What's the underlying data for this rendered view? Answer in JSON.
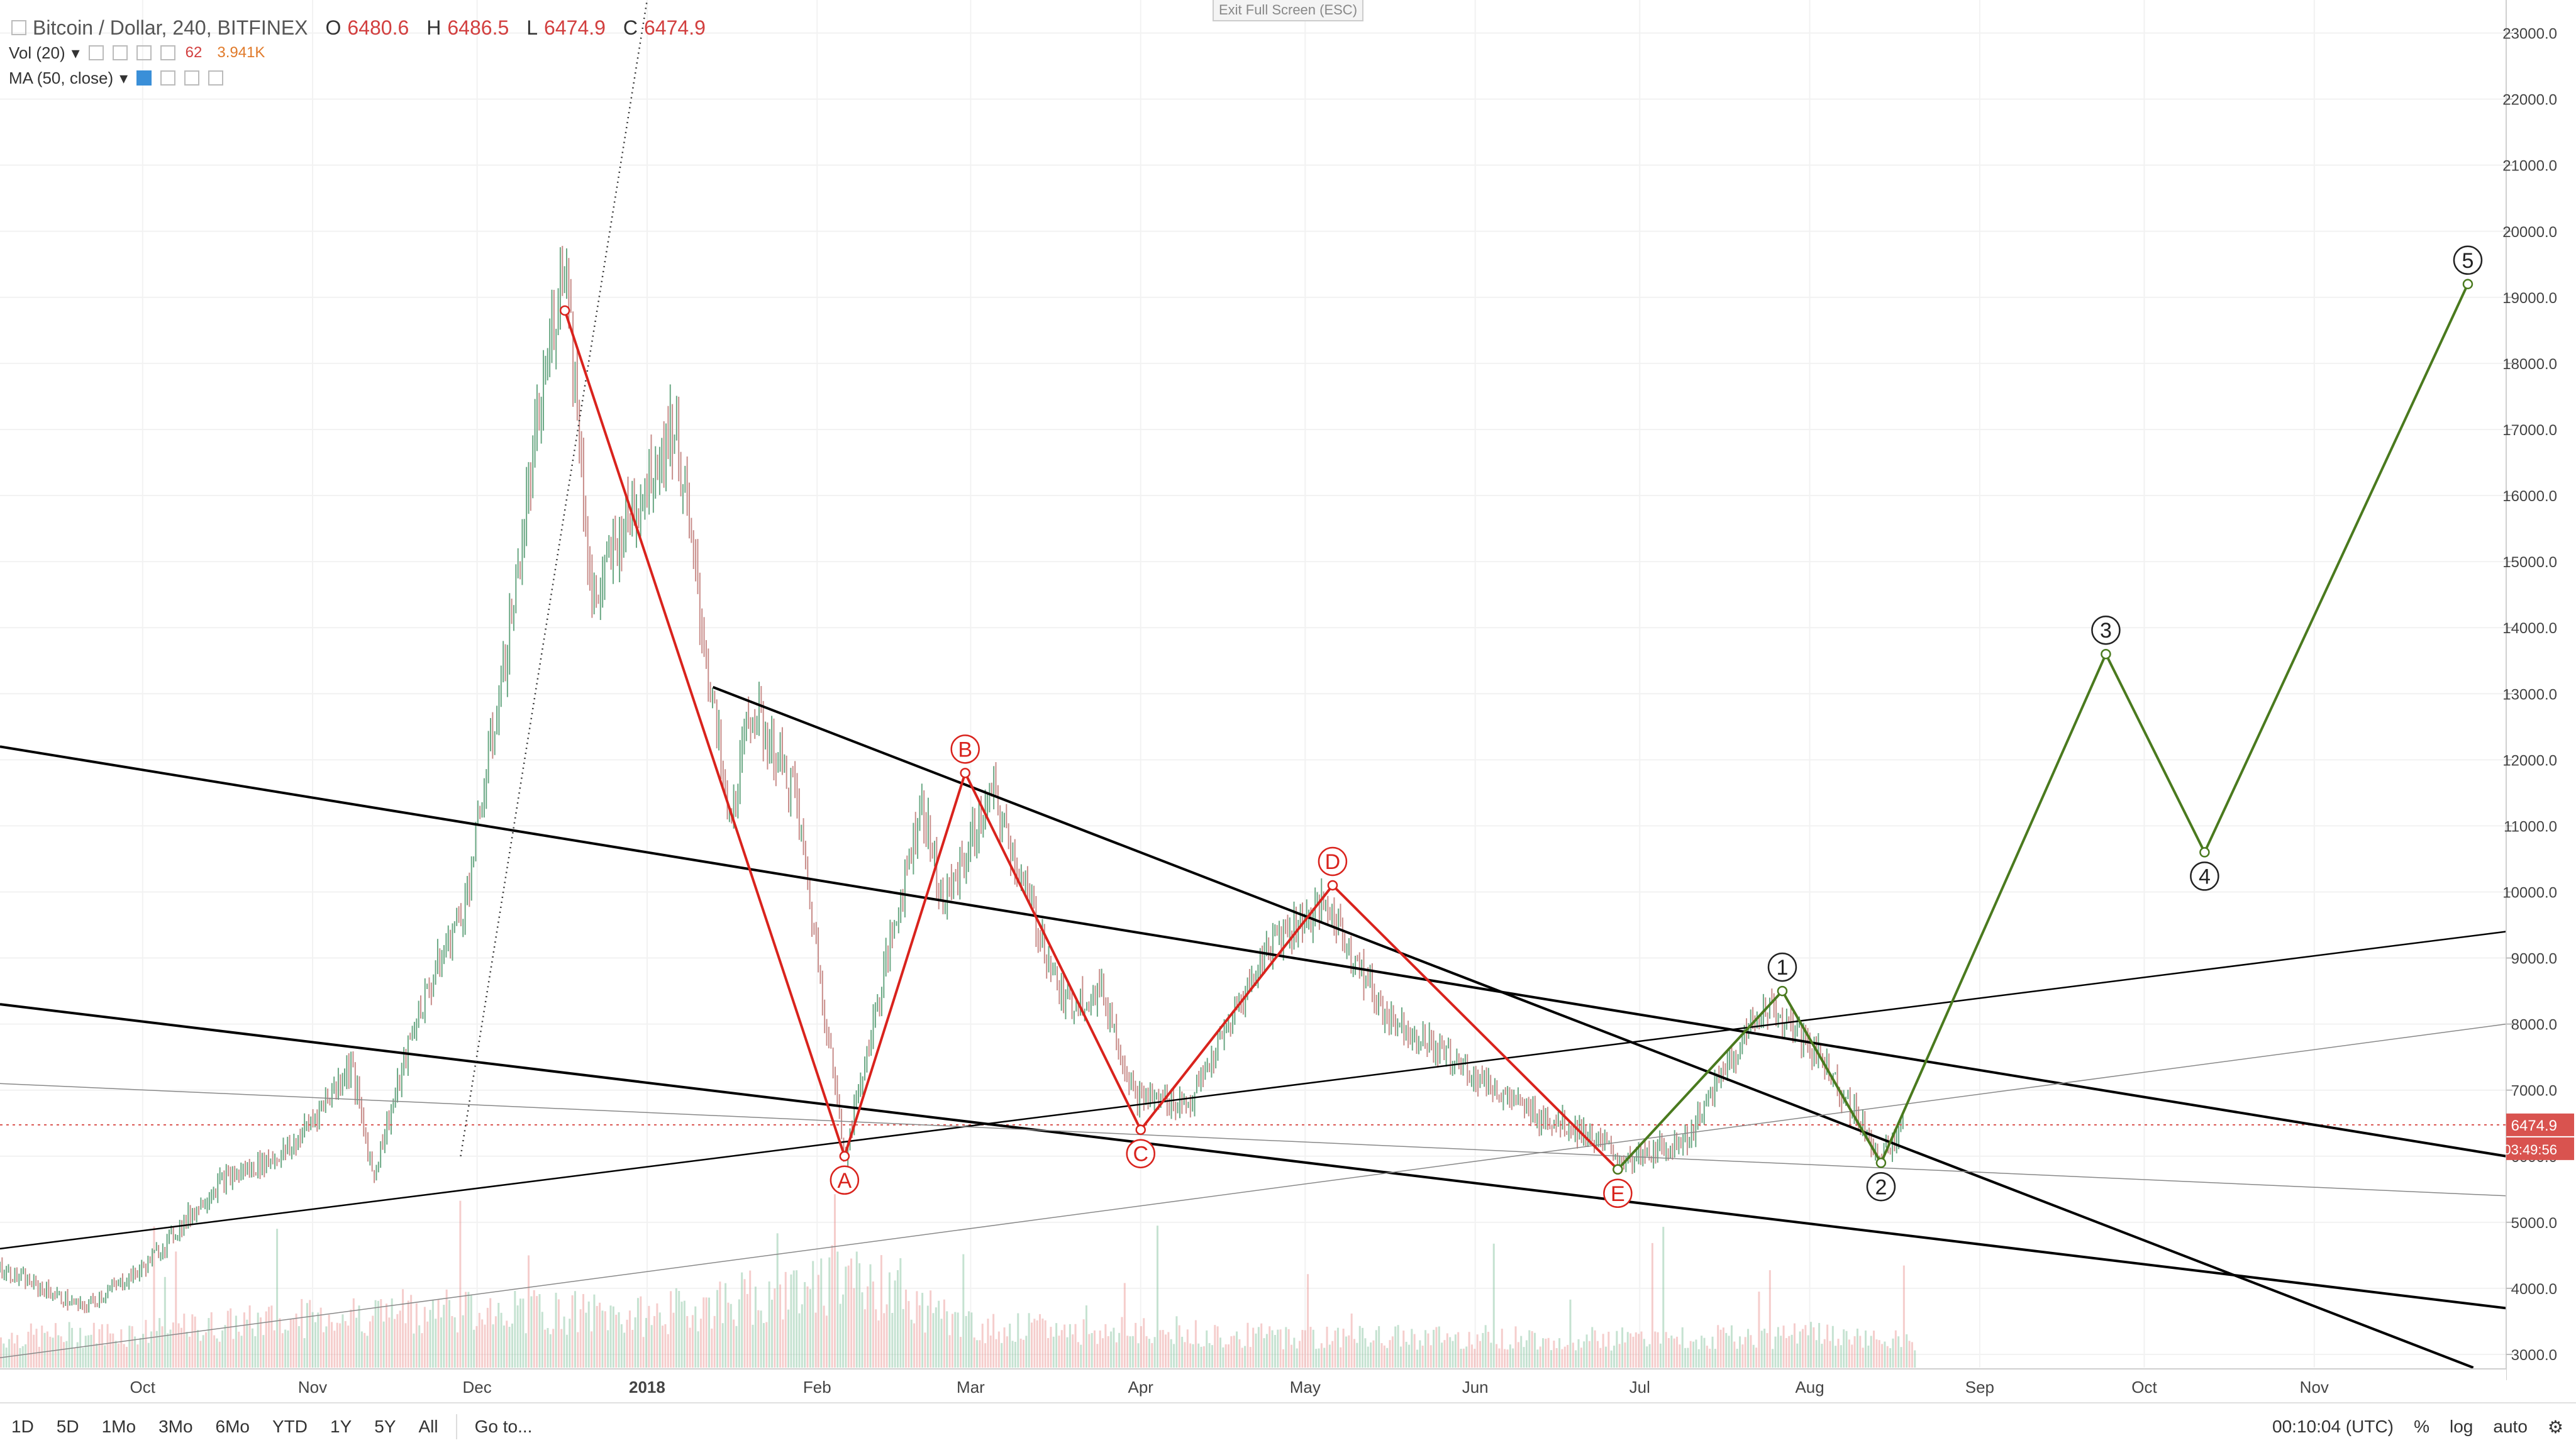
{
  "header": {
    "symbol": "Bitcoin / Dollar, 240, BITFINEX",
    "ohlc": [
      {
        "key": "O",
        "value": "6480.6"
      },
      {
        "key": "H",
        "value": "6486.5"
      },
      {
        "key": "L",
        "value": "6474.9"
      },
      {
        "key": "C",
        "value": "6474.9"
      }
    ],
    "vol_label": "Vol (20)",
    "vol_value_1": "62",
    "vol_value_2": "3.941K",
    "ma_label": "MA (50, close)",
    "exit_fullscreen": "Exit Full Screen (ESC)"
  },
  "price_axis": {
    "ticks": [
      "3000.0",
      "4000.0",
      "5000.0",
      "6000.0",
      "7000.0",
      "8000.0",
      "9000.0",
      "10000.0",
      "11000.0",
      "12000.0",
      "13000.0",
      "14000.0",
      "15000.0",
      "16000.0",
      "17000.0",
      "18000.0",
      "19000.0",
      "20000.0",
      "21000.0",
      "22000.0",
      "23000.0"
    ],
    "current_price": "6474.9",
    "countdown": "03:49:56"
  },
  "time_axis": {
    "labels": [
      "Oct",
      "Nov",
      "Dec",
      "2018",
      "Feb",
      "Mar",
      "Apr",
      "May",
      "Jun",
      "Jul",
      "Aug",
      "Sep",
      "Oct",
      "Nov"
    ]
  },
  "bottom_bar": {
    "ranges": [
      "1D",
      "5D",
      "1Mo",
      "3Mo",
      "6Mo",
      "YTD",
      "1Y",
      "5Y",
      "All"
    ],
    "goto": "Go to...",
    "time": "00:10:04 (UTC)",
    "percent": "%",
    "log": "log",
    "auto": "auto"
  },
  "colors": {
    "up": "#7fbf9a",
    "down": "#e8908f",
    "red_wave": "#d9231d",
    "green_wave": "#4a7a1e",
    "price_tag": "#d9534f"
  },
  "chart_data": {
    "type": "line",
    "title": "Bitcoin / Dollar, 240, BITFINEX",
    "ylim": [
      2800,
      23500
    ],
    "xlim": [
      "2017-09-05",
      "2018-12-06"
    ],
    "grid": true,
    "price_history": {
      "x": [
        "2017-09-05",
        "2017-09-20",
        "2017-10-01",
        "2017-10-15",
        "2017-10-28",
        "2017-11-08",
        "2017-11-12",
        "2017-11-20",
        "2017-11-29",
        "2017-12-07",
        "2017-12-12",
        "2017-12-17",
        "2017-12-22",
        "2017-12-27",
        "2018-01-06",
        "2018-01-16",
        "2018-01-20",
        "2018-01-28",
        "2018-02-06",
        "2018-02-20",
        "2018-02-24",
        "2018-03-05",
        "2018-03-18",
        "2018-03-25",
        "2018-03-31",
        "2018-04-10",
        "2018-04-25",
        "2018-05-05",
        "2018-05-15",
        "2018-05-29",
        "2018-06-10",
        "2018-06-20",
        "2018-06-29",
        "2018-07-10",
        "2018-07-17",
        "2018-07-24",
        "2018-08-03",
        "2018-08-14",
        "2018-08-18"
      ],
      "y": [
        4300,
        3700,
        4300,
        5600,
        6100,
        7400,
        5700,
        8100,
        9900,
        14000,
        17000,
        19800,
        14300,
        15400,
        17100,
        11000,
        12800,
        11500,
        6000,
        11400,
        9800,
        11500,
        8300,
        8500,
        6900,
        6800,
        9300,
        9800,
        8200,
        7400,
        6700,
        6400,
        5900,
        6300,
        7400,
        8300,
        7500,
        6000,
        6400
      ]
    },
    "volume": {
      "x": [
        "2017-09-05",
        "2017-10-01",
        "2017-11-01",
        "2017-12-01",
        "2018-01-01",
        "2018-02-06",
        "2018-03-01",
        "2018-04-01",
        "2018-05-01",
        "2018-06-01",
        "2018-07-01",
        "2018-08-01",
        "2018-08-20"
      ],
      "values": [
        0.3,
        0.35,
        0.5,
        0.6,
        0.5,
        0.9,
        0.4,
        0.35,
        0.3,
        0.3,
        0.28,
        0.32,
        0.25
      ]
    },
    "wave_abcde": {
      "labels": [
        "",
        "A",
        "B",
        "C",
        "D",
        "E"
      ],
      "x": [
        "2017-12-17",
        "2018-02-06",
        "2018-02-28",
        "2018-04-01",
        "2018-05-06",
        "2018-06-27"
      ],
      "y": [
        18800,
        6000,
        11800,
        6400,
        10100,
        5800
      ]
    },
    "wave_12345": {
      "labels": [
        "",
        "1",
        "2",
        "3",
        "4",
        "5"
      ],
      "x": [
        "2018-06-27",
        "2018-07-27",
        "2018-08-14",
        "2018-09-24",
        "2018-10-12",
        "2018-11-29"
      ],
      "y": [
        5800,
        8500,
        5900,
        13600,
        10600,
        19200
      ]
    },
    "trendlines": [
      {
        "x": [
          "2017-09-05",
          "2018-12-06"
        ],
        "y": [
          12200,
          6000
        ],
        "weight": "heavy"
      },
      {
        "x": [
          "2017-09-05",
          "2018-12-06"
        ],
        "y": [
          8300,
          3700
        ],
        "weight": "heavy"
      },
      {
        "x": [
          "2018-01-13",
          "2018-11-30"
        ],
        "y": [
          13100,
          2800
        ],
        "weight": "heavy"
      },
      {
        "x": [
          "2017-09-05",
          "2018-12-06"
        ],
        "y": [
          4600,
          9400
        ],
        "weight": "medium"
      },
      {
        "x": [
          "2017-09-05",
          "2018-12-06"
        ],
        "y": [
          2950,
          8000
        ],
        "weight": "light"
      },
      {
        "x": [
          "2017-09-05",
          "2018-12-06"
        ],
        "y": [
          7100,
          5400
        ],
        "weight": "light"
      },
      {
        "x": [
          "2017-11-28",
          "2018-01-01"
        ],
        "y": [
          6000,
          23500
        ],
        "weight": "dotted"
      }
    ]
  }
}
